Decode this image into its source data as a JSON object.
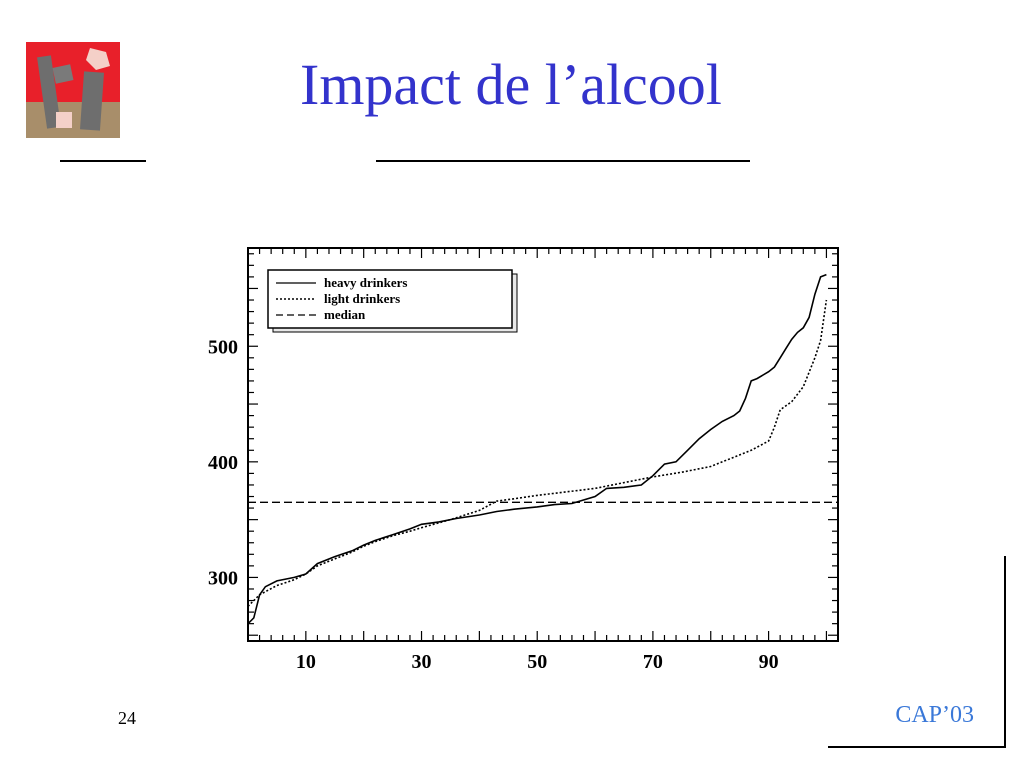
{
  "slide": {
    "title": "Impact de l’alcool",
    "page_number": "24",
    "footer": "CAP’03"
  },
  "logo": {
    "icon": "rci-logo-icon",
    "colors": {
      "red": "#e8202a",
      "gray": "#6e6e6e",
      "tan": "#b09a78",
      "pink": "#f4d0c8"
    }
  },
  "colors": {
    "title": "#3333cc",
    "footer": "#3a78d8"
  },
  "chart_data": {
    "type": "line",
    "title": "",
    "xlabel": "",
    "ylabel": "",
    "xlim": [
      0,
      102
    ],
    "ylim": [
      245,
      585
    ],
    "x_ticks": [
      10,
      30,
      50,
      70,
      90
    ],
    "y_ticks": [
      300,
      400,
      500
    ],
    "legend_position": "top-left",
    "grid": false,
    "series": [
      {
        "name": "heavy drinkers",
        "style": "solid",
        "points": [
          [
            0,
            260
          ],
          [
            1,
            265
          ],
          [
            2,
            285
          ],
          [
            3,
            292
          ],
          [
            5,
            297
          ],
          [
            8,
            300
          ],
          [
            10,
            303
          ],
          [
            12,
            312
          ],
          [
            15,
            318
          ],
          [
            18,
            323
          ],
          [
            20,
            328
          ],
          [
            22,
            332
          ],
          [
            25,
            337
          ],
          [
            28,
            342
          ],
          [
            30,
            346
          ],
          [
            33,
            348
          ],
          [
            36,
            351
          ],
          [
            40,
            354
          ],
          [
            43,
            357
          ],
          [
            46,
            359
          ],
          [
            50,
            361
          ],
          [
            53,
            363
          ],
          [
            56,
            364
          ],
          [
            60,
            370
          ],
          [
            62,
            377
          ],
          [
            65,
            378
          ],
          [
            68,
            380
          ],
          [
            70,
            388
          ],
          [
            72,
            398
          ],
          [
            74,
            400
          ],
          [
            76,
            410
          ],
          [
            78,
            420
          ],
          [
            80,
            428
          ],
          [
            82,
            435
          ],
          [
            84,
            440
          ],
          [
            85,
            444
          ],
          [
            86,
            455
          ],
          [
            87,
            470
          ],
          [
            88,
            472
          ],
          [
            90,
            478
          ],
          [
            91,
            482
          ],
          [
            92,
            490
          ],
          [
            93,
            498
          ],
          [
            94,
            506
          ],
          [
            95,
            512
          ],
          [
            96,
            516
          ],
          [
            97,
            525
          ],
          [
            98,
            545
          ],
          [
            99,
            560
          ],
          [
            100,
            562
          ]
        ]
      },
      {
        "name": "light drinkers",
        "style": "dotted",
        "points": [
          [
            0,
            275
          ],
          [
            2,
            285
          ],
          [
            5,
            293
          ],
          [
            8,
            298
          ],
          [
            10,
            303
          ],
          [
            12,
            310
          ],
          [
            15,
            316
          ],
          [
            18,
            322
          ],
          [
            20,
            327
          ],
          [
            22,
            331
          ],
          [
            25,
            336
          ],
          [
            28,
            340
          ],
          [
            30,
            343
          ],
          [
            35,
            350
          ],
          [
            40,
            358
          ],
          [
            43,
            366
          ],
          [
            46,
            368
          ],
          [
            50,
            371
          ],
          [
            55,
            374
          ],
          [
            60,
            377
          ],
          [
            65,
            382
          ],
          [
            70,
            387
          ],
          [
            75,
            391
          ],
          [
            80,
            396
          ],
          [
            84,
            404
          ],
          [
            87,
            410
          ],
          [
            90,
            418
          ],
          [
            91,
            430
          ],
          [
            92,
            445
          ],
          [
            94,
            452
          ],
          [
            96,
            465
          ],
          [
            98,
            490
          ],
          [
            99,
            505
          ],
          [
            100,
            540
          ]
        ]
      },
      {
        "name": "median",
        "style": "dashed",
        "points": [
          [
            0,
            365
          ],
          [
            102,
            365
          ]
        ]
      }
    ]
  }
}
